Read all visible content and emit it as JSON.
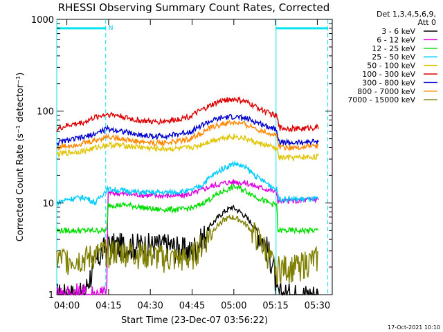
{
  "chart_data": {
    "type": "line",
    "title": "RHESSI Observing Summary Count Rates, Corrected",
    "xlabel": "Start Time (23-Dec-07 03:56:22)",
    "ylabel": "Corrected Count Rate (s⁻¹ detector⁻¹)",
    "ylim": [
      1,
      1000
    ],
    "yscale": "log",
    "xlim_minutes": [
      0,
      99
    ],
    "x_unit": "minutes after 03:56:22",
    "x_ticks": [
      {
        "label": "04:00",
        "value": 3.63
      },
      {
        "label": "04:15",
        "value": 18.63
      },
      {
        "label": "04:30",
        "value": 33.63
      },
      {
        "label": "04:45",
        "value": 48.63
      },
      {
        "label": "05:00",
        "value": 63.63
      },
      {
        "label": "05:15",
        "value": 78.63
      },
      {
        "label": "05:30",
        "value": 93.63
      }
    ],
    "y_ticks": [
      {
        "label": "1",
        "value": 1
      },
      {
        "label": "10",
        "value": 10
      },
      {
        "label": "100",
        "value": 100
      },
      {
        "label": "1000",
        "value": 1000
      }
    ],
    "legend_header": [
      "Det 1,3,4,5,6,9,",
      "Att 0"
    ],
    "legend_position": "top-right",
    "series": [
      {
        "name": "3 - 6 keV",
        "color": "#000000",
        "x": [
          0,
          10,
          18,
          20,
          25,
          40,
          48,
          52,
          56,
          60,
          63,
          66,
          70,
          74,
          78,
          79,
          85,
          94
        ],
        "y": [
          1,
          1,
          3.5,
          3.5,
          3.5,
          3.5,
          3,
          4,
          6,
          8,
          9,
          8,
          6,
          4,
          2,
          1,
          1,
          1
        ]
      },
      {
        "name": "6 - 12 keV",
        "color": "#dd00dd",
        "x": [
          0,
          18,
          18.5,
          25,
          35,
          45,
          50,
          55,
          60,
          64,
          68,
          72,
          76,
          79,
          79.5,
          86,
          94
        ],
        "y": [
          1,
          1,
          13,
          12.5,
          12,
          12,
          13,
          15,
          16.5,
          17,
          16.5,
          15,
          14,
          13,
          10.5,
          10.5,
          11
        ]
      },
      {
        "name": "12 - 25 keV",
        "color": "#00dd00",
        "x": [
          0,
          3,
          10,
          14,
          17,
          18,
          18.5,
          25,
          35,
          45,
          50,
          55,
          60,
          64,
          68,
          72,
          76,
          79,
          79.5,
          86,
          94
        ],
        "y": [
          5,
          5,
          5,
          5,
          5,
          5,
          9.5,
          9.5,
          8.5,
          8.5,
          9,
          11,
          13.5,
          15,
          13.5,
          11.5,
          10,
          9.5,
          5,
          5,
          5
        ]
      },
      {
        "name": "25 - 50 keV",
        "color": "#00ccff",
        "x": [
          0,
          4,
          10,
          14,
          16,
          18,
          20,
          30,
          40,
          48,
          52,
          56,
          60,
          64,
          68,
          72,
          76,
          79,
          80,
          86,
          94
        ],
        "y": [
          10,
          11,
          11.5,
          10,
          12,
          14,
          14,
          13,
          13,
          13.5,
          15.5,
          20,
          24,
          27,
          24,
          19,
          16,
          14,
          11,
          11,
          11
        ]
      },
      {
        "name": "50 - 100 keV",
        "color": "#e0c400",
        "x": [
          0,
          10,
          18,
          25,
          35,
          45,
          50,
          55,
          60,
          64,
          68,
          72,
          76,
          79,
          80,
          86,
          94
        ],
        "y": [
          34,
          37,
          43,
          42,
          39,
          39,
          41,
          47,
          52,
          53,
          50,
          45,
          42,
          39,
          31,
          31,
          32
        ]
      },
      {
        "name": "100 - 300 keV",
        "color": "#dd0000",
        "x": [
          0,
          4,
          10,
          14,
          18,
          22,
          28,
          35,
          42,
          48,
          52,
          56,
          60,
          64,
          68,
          72,
          76,
          79,
          80,
          86,
          94
        ],
        "y": [
          63,
          70,
          76,
          86,
          93,
          90,
          80,
          76,
          80,
          88,
          102,
          118,
          132,
          135,
          126,
          110,
          96,
          88,
          66,
          64,
          67
        ]
      },
      {
        "name": "300 - 800 keV",
        "color": "#0000cc",
        "x": [
          0,
          4,
          10,
          14,
          18,
          22,
          28,
          35,
          42,
          48,
          52,
          56,
          60,
          64,
          68,
          72,
          76,
          79,
          80,
          86,
          94
        ],
        "y": [
          45,
          48,
          52,
          57,
          64,
          62,
          56,
          53,
          55,
          60,
          70,
          79,
          85,
          87,
          83,
          75,
          68,
          64,
          46,
          45,
          47
        ]
      },
      {
        "name": "800 - 7000 keV",
        "color": "#ff8800",
        "x": [
          0,
          4,
          10,
          14,
          18,
          22,
          28,
          35,
          42,
          48,
          52,
          56,
          60,
          64,
          68,
          72,
          76,
          79,
          80,
          86,
          94
        ],
        "y": [
          40,
          42,
          45,
          48,
          53,
          51,
          47,
          45,
          46,
          50,
          58,
          67,
          73,
          75,
          71,
          64,
          58,
          54,
          41,
          40,
          42
        ]
      },
      {
        "name": "7000 - 15000 keV",
        "color": "#808000",
        "x": [
          0,
          10,
          18,
          20,
          25,
          40,
          48,
          52,
          56,
          60,
          63,
          66,
          70,
          74,
          78,
          79,
          85,
          94
        ],
        "y": [
          2.5,
          2.5,
          3,
          3,
          3,
          2.5,
          2.5,
          3.5,
          5,
          6.5,
          7,
          6.5,
          5,
          3.5,
          2,
          2,
          2,
          2.5
        ]
      }
    ],
    "attenuator_intervals": [
      {
        "x0": 0,
        "x1": 17.6,
        "y": 800,
        "label": ""
      },
      {
        "x0": 78.8,
        "x1": 97.4,
        "y": 800,
        "label": ""
      }
    ],
    "night_mark_label": "N",
    "vertical_markers_dashed": [
      17.6,
      97.4
    ],
    "vertical_markers_solid": [
      0,
      78.8
    ]
  },
  "timestamp": "17-Oct-2021 10:10"
}
